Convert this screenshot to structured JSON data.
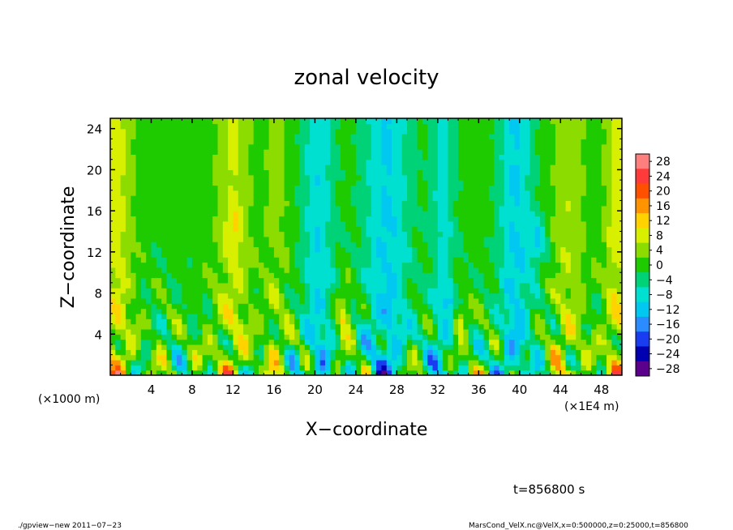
{
  "chart_data": {
    "type": "heatmap",
    "title": "zonal velocity",
    "xlabel": "X−coordinate",
    "ylabel": "Z−coordinate",
    "x_unit_left": "(×1000 m)",
    "x_unit_right": "(×1E4 m)",
    "xlim": [
      0,
      50
    ],
    "ylim": [
      0,
      25
    ],
    "x_ticks": [
      4,
      8,
      12,
      16,
      20,
      24,
      28,
      32,
      36,
      40,
      44,
      48
    ],
    "x_ticklabels": [
      "4",
      "8",
      "12",
      "16",
      "20",
      "24",
      "28",
      "32",
      "36",
      "40",
      "44",
      "48"
    ],
    "y_ticks": [
      4,
      8,
      12,
      16,
      20,
      24
    ],
    "y_ticklabels": [
      "4",
      "8",
      "12",
      "16",
      "20",
      "24"
    ],
    "colorbar": {
      "levels": [
        28,
        24,
        20,
        16,
        12,
        8,
        4,
        0,
        -4,
        -8,
        -12,
        -16,
        -20,
        -24,
        -28
      ],
      "labels": [
        "28",
        "24",
        "20",
        "16",
        "12",
        "8",
        "4",
        "0",
        "−4",
        "−8",
        "−12",
        "−16",
        "−20",
        "−24",
        "−28"
      ],
      "colors": [
        "#ff7f7f",
        "#ff3a3a",
        "#ff5000",
        "#ff9400",
        "#ffd200",
        "#d8f000",
        "#8cdc00",
        "#1ecb00",
        "#00d277",
        "#00e0d0",
        "#00c8f0",
        "#2a8cff",
        "#1a3cf0",
        "#0000b0",
        "#5a008c"
      ]
    },
    "field_description": "Upper half mostly 0 to 8 (yellow-green) with yellow vertical bands near x=0-2, 11-13, 44-46, 49-50; cyan (-8 to -12) bands near x=19-21, 25-29, 39-41; lower region z<10 noisy with strong alternating positive (orange/red up to ~20) and negative (blue down to ~-20) cells near the bottom."
  },
  "footer": {
    "time_label": "t=856800 s",
    "program_label": "./gpview−new   2011−07−23",
    "source_label": "MarsCond_VelX.nc@VelX,x=0:500000,z=0:25000,t=856800"
  }
}
